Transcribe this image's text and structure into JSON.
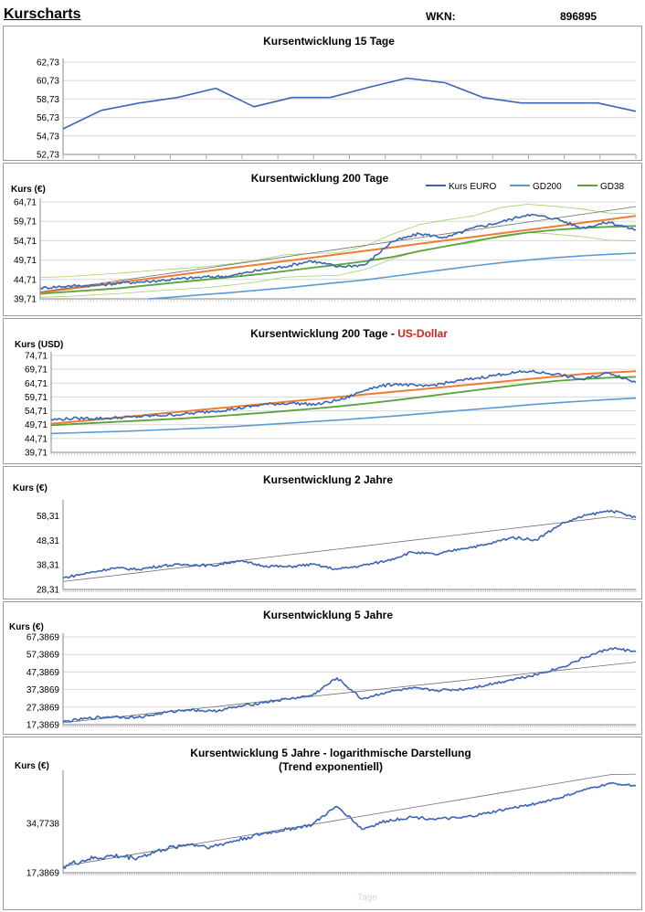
{
  "header": {
    "title": "Kurscharts",
    "wkn_label": "WKN:",
    "wkn_value": "896895"
  },
  "colors": {
    "kurs": "#3a65b5",
    "gd200": "#5b9bd5",
    "gd38": "#59a33b",
    "trend_orange": "#ed7d31",
    "trend_grey": "#707070",
    "thin_green": "#9dd16a",
    "grid": "#d9d9d9",
    "usd_red": "#d0231c"
  },
  "legend": [
    "Kurs EURO",
    "GD200",
    "GD38"
  ],
  "footer": {
    "xlabel": "Tage"
  },
  "chart_data": [
    {
      "id": "c15",
      "type": "line",
      "title": "Kursentwicklung 15 Tage",
      "ylabel": "",
      "ylim": [
        52.73,
        62.73
      ],
      "yticks": [
        "62,73",
        "60,73",
        "58,73",
        "56,73",
        "54,73",
        "52,73"
      ],
      "series": [
        {
          "name": "Kurs",
          "values": [
            55.5,
            57.5,
            58.3,
            58.9,
            59.9,
            57.9,
            58.9,
            58.9,
            60.0,
            61.0,
            60.5,
            58.9,
            58.3,
            58.3,
            58.3,
            57.4
          ]
        }
      ]
    },
    {
      "id": "c200",
      "type": "line",
      "title": "Kursentwicklung 200 Tage",
      "ylabel": "Kurs (€)",
      "ylim": [
        39.71,
        64.71
      ],
      "yticks": [
        "64,71",
        "59,71",
        "54,71",
        "49,71",
        "44,71",
        "39,71"
      ],
      "series": [
        {
          "name": "Kurs EURO",
          "values": [
            42.5,
            43.0,
            43.2,
            43.8,
            44.2,
            44.8,
            45.3,
            45.6,
            47.0,
            48.0,
            49.5,
            48.0,
            48.5,
            54.5,
            56.5,
            55.5,
            58.0,
            59.5,
            61.5,
            60.5,
            58.0,
            59.5,
            57.5
          ]
        },
        {
          "name": "GD200",
          "values": [
            null,
            null,
            null,
            null,
            39.71,
            40.2,
            40.8,
            41.3,
            41.9,
            42.5,
            43.2,
            43.9,
            44.6,
            45.5,
            46.4,
            47.3,
            48.2,
            49.0,
            49.7,
            50.3,
            50.8,
            51.2,
            51.5
          ]
        },
        {
          "name": "GD38",
          "values": [
            41.0,
            41.5,
            42.0,
            42.5,
            43.2,
            43.9,
            44.6,
            45.3,
            46.0,
            46.8,
            47.7,
            48.5,
            49.4,
            50.5,
            52.0,
            53.3,
            54.6,
            55.8,
            56.8,
            57.5,
            58.0,
            58.3,
            58.5
          ]
        },
        {
          "name": "Trend orange",
          "values": [
            41.3,
            42.2,
            43.1,
            44.0,
            44.9,
            45.8,
            46.7,
            47.6,
            48.5,
            49.4,
            50.3,
            51.2,
            52.1,
            53.0,
            53.9,
            54.8,
            55.7,
            56.6,
            57.5,
            58.4,
            59.3,
            60.2,
            61.1
          ]
        },
        {
          "name": "Trend grey",
          "values": [
            41.5,
            42.5,
            43.5,
            44.5,
            45.5,
            46.5,
            47.5,
            48.5,
            49.5,
            50.5,
            51.5,
            52.5,
            53.5,
            54.5,
            55.5,
            56.5,
            57.5,
            58.5,
            59.5,
            60.5,
            61.5,
            62.5,
            63.5
          ]
        }
      ]
    },
    {
      "id": "cusd",
      "type": "line",
      "title": "Kursentwicklung 200 Tage",
      "title_suffix": "US-Dollar",
      "ylabel": "Kurs (USD)",
      "ylim": [
        39.71,
        74.71
      ],
      "yticks": [
        "74,71",
        "69,71",
        "64,71",
        "59,71",
        "54,71",
        "49,71",
        "44,71",
        "39,71"
      ],
      "series": [
        {
          "name": "Kurs USD",
          "values": [
            51.5,
            52.0,
            52.0,
            52.5,
            53.0,
            53.5,
            54.5,
            55.5,
            57.0,
            57.5,
            57.0,
            59.0,
            63.0,
            64.5,
            63.5,
            65.0,
            66.5,
            68.0,
            69.0,
            68.0,
            66.0,
            68.5,
            65.0
          ]
        },
        {
          "name": "GD200",
          "values": [
            46.5,
            46.8,
            47.1,
            47.4,
            47.8,
            48.2,
            48.6,
            49.1,
            49.7,
            50.3,
            50.9,
            51.5,
            52.2,
            52.9,
            53.7,
            54.5,
            55.3,
            56.1,
            56.9,
            57.6,
            58.2,
            58.8,
            59.3
          ]
        },
        {
          "name": "GD38",
          "values": [
            49.5,
            50.0,
            50.5,
            51.0,
            51.5,
            52.0,
            52.6,
            53.3,
            54.0,
            54.8,
            55.6,
            56.5,
            57.5,
            58.6,
            59.8,
            61.0,
            62.2,
            63.4,
            64.5,
            65.5,
            66.2,
            66.7,
            67.0
          ]
        },
        {
          "name": "Trend orange",
          "values": [
            50.0,
            50.9,
            51.8,
            52.7,
            53.6,
            54.5,
            55.4,
            56.3,
            57.2,
            58.1,
            59.0,
            59.9,
            60.8,
            61.7,
            62.6,
            63.5,
            64.4,
            65.3,
            66.2,
            67.1,
            68.0,
            68.5,
            69.0
          ]
        }
      ]
    },
    {
      "id": "c2y",
      "type": "line",
      "title": "Kursentwicklung 2 Jahre",
      "ylabel": "Kurs (€)",
      "ylim": [
        28.31,
        63.31
      ],
      "yticks": [
        "58,31",
        "48,31",
        "38,31",
        "28,31"
      ],
      "series": [
        {
          "name": "Kurs",
          "values": [
            33.0,
            35.0,
            37.0,
            36.5,
            38.0,
            38.5,
            38.0,
            40.0,
            38.0,
            37.5,
            38.5,
            36.5,
            38.0,
            40.0,
            43.5,
            42.5,
            45.0,
            46.5,
            49.5,
            48.5,
            55.0,
            58.5,
            60.5,
            57.5
          ]
        },
        {
          "name": "Trend",
          "values": [
            31.5,
            32.7,
            33.9,
            35.1,
            36.3,
            37.5,
            38.7,
            39.9,
            41.1,
            42.3,
            43.5,
            44.7,
            45.9,
            47.1,
            48.3,
            49.5,
            50.7,
            51.9,
            53.1,
            54.3,
            55.5,
            56.7,
            57.9,
            56.8
          ]
        }
      ]
    },
    {
      "id": "c5y",
      "type": "line",
      "title": "Kursentwicklung 5 Jahre",
      "ylabel": "Kurs (€)",
      "ylim": [
        17.3869,
        67.3869
      ],
      "yticks": [
        "67,3869",
        "57,3869",
        "47,3869",
        "37,3869",
        "27,3869",
        "17,3869"
      ],
      "series": [
        {
          "name": "Kurs",
          "values": [
            19.0,
            21.0,
            22.0,
            21.5,
            24.0,
            26.0,
            25.0,
            27.5,
            30.0,
            32.0,
            34.0,
            44.0,
            32.0,
            36.0,
            38.0,
            37.0,
            37.5,
            40.0,
            43.0,
            46.0,
            50.0,
            56.0,
            61.0,
            59.0
          ]
        },
        {
          "name": "Trend",
          "values": [
            18.5,
            20.0,
            21.5,
            23.0,
            24.5,
            26.0,
            27.5,
            29.0,
            30.5,
            32.0,
            33.5,
            35.0,
            36.5,
            38.0,
            39.5,
            41.0,
            42.5,
            44.0,
            45.5,
            47.0,
            48.5,
            50.0,
            51.5,
            53.0
          ]
        }
      ]
    },
    {
      "id": "clog",
      "type": "line",
      "title": "Kursentwicklung 5 Jahre - logarithmische Darstellung",
      "title2": "(Trend exponentiell)",
      "ylabel": "Kurs (€)",
      "ylim": [
        17.3869,
        69.5476
      ],
      "log": true,
      "yticks": [
        "34,7738",
        "17,3869"
      ],
      "series": [
        {
          "name": "Kurs",
          "values": [
            19.0,
            21.0,
            22.0,
            21.5,
            24.0,
            26.0,
            25.0,
            27.5,
            30.0,
            32.0,
            34.0,
            44.0,
            32.0,
            36.0,
            38.0,
            37.0,
            37.5,
            40.0,
            43.0,
            46.0,
            50.0,
            56.0,
            61.0,
            59.0
          ]
        },
        {
          "name": "Trend",
          "values": [
            19.0,
            20.2,
            21.4,
            22.7,
            24.1,
            25.5,
            27.1,
            28.7,
            30.4,
            32.3,
            34.2,
            36.3,
            38.5,
            40.8,
            43.3,
            45.9,
            48.7,
            51.6,
            54.7,
            58.0,
            61.5,
            65.2,
            69.0,
            69.5
          ]
        }
      ]
    }
  ]
}
